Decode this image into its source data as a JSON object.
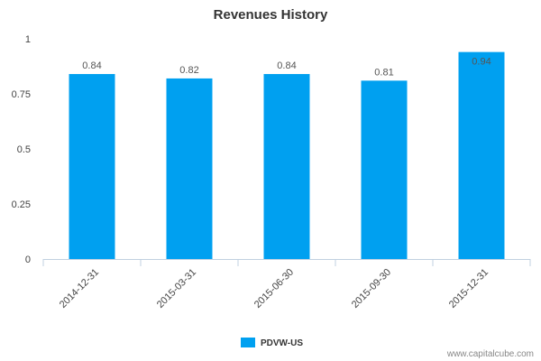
{
  "chart_data": {
    "type": "bar",
    "title": "Revenues History",
    "categories": [
      "2014-12-31",
      "2015-03-31",
      "2015-06-30",
      "2015-09-30",
      "2015-12-31"
    ],
    "series": [
      {
        "name": "PDVW-US",
        "values": [
          0.84,
          0.82,
          0.84,
          0.81,
          0.94
        ],
        "color": "#00a0f0"
      }
    ],
    "data_labels": [
      "0.84",
      "0.82",
      "0.84",
      "0.81",
      "0.94"
    ],
    "yticks": [
      0,
      0.25,
      0.5,
      0.75,
      1
    ],
    "ytick_labels": [
      "0",
      "0.25",
      "0.5",
      "0.75",
      "1"
    ],
    "ylim": [
      0,
      1
    ],
    "xlabel": "",
    "ylabel": "",
    "grid": false,
    "legend_position": "bottom-center"
  },
  "watermark": "www.capitalcube.com",
  "colors": {
    "bar": "#00a0f0",
    "axis": "#c0d0e0",
    "text": "#333333"
  }
}
